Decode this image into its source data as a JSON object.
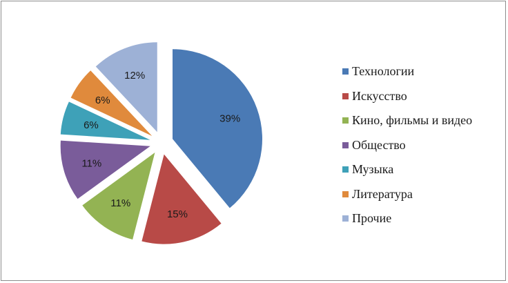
{
  "chart_data": {
    "type": "pie",
    "title": "",
    "exploded": true,
    "legend_position": "right",
    "slices": [
      {
        "label": "Технологии",
        "value": 39,
        "display": "39%",
        "color": "#4a7ab5"
      },
      {
        "label": "Искусство",
        "value": 15,
        "display": "15%",
        "color": "#b84a47"
      },
      {
        "label": "Кино, фильмы и видео",
        "value": 11,
        "display": "11%",
        "color": "#93b353"
      },
      {
        "label": "Общество",
        "value": 11,
        "display": "11%",
        "color": "#7a5c9a"
      },
      {
        "label": "Музыка",
        "value": 6,
        "display": "6%",
        "color": "#3ea1b8"
      },
      {
        "label": "Литература",
        "value": 6,
        "display": "6%",
        "color": "#e08a3c"
      },
      {
        "label": "Прочие",
        "value": 12,
        "display": "12%",
        "color": "#9db1d6"
      }
    ]
  }
}
